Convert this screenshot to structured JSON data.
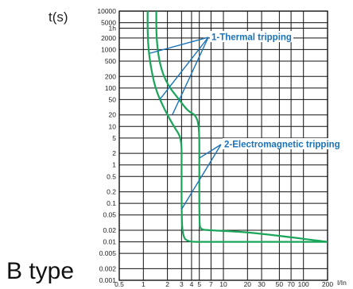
{
  "chart_data": {
    "type": "line",
    "title": "B type",
    "ylabel": "t(s)",
    "xlabel": "I/In",
    "x_scale": "log",
    "y_scale": "log",
    "xlim": [
      0.5,
      200
    ],
    "ylim": [
      0.001,
      10000
    ],
    "grid": true,
    "y_tick_labels": [
      "10000",
      "5000",
      "1h",
      "2000",
      "1000",
      "500",
      "200",
      "100",
      "50",
      "20",
      "10",
      "5",
      "2",
      "1",
      "0.5",
      "0.2",
      "0.1",
      "0.05",
      "0.02",
      "0.01",
      "0.005",
      "0.002",
      "0.001"
    ],
    "y_tick_values": [
      10000,
      5000,
      3600,
      2000,
      1000,
      500,
      200,
      100,
      50,
      20,
      10,
      5,
      2,
      1,
      0.5,
      0.2,
      0.1,
      0.05,
      0.02,
      0.01,
      0.005,
      0.002,
      0.001
    ],
    "x_tick_labels": [
      "0.5",
      "1",
      "2",
      "3",
      "4",
      "5",
      "7",
      "10",
      "20",
      "30",
      "50",
      "70",
      "100",
      "200"
    ],
    "x_tick_values": [
      0.5,
      1,
      2,
      3,
      4,
      5,
      7,
      10,
      20,
      30,
      50,
      70,
      100,
      200
    ],
    "series": [
      {
        "color": "#1aa55a",
        "x": [
          1.13,
          1.13,
          1.2,
          1.4,
          1.8,
          2.4,
          3.0,
          3.0,
          3.0,
          3.1,
          3.5,
          6,
          20,
          100,
          200
        ],
        "y": [
          10000,
          2000,
          500,
          100,
          30,
          10,
          5,
          1,
          0.05,
          0.015,
          0.01,
          0.01,
          0.01,
          0.01,
          0.01
        ]
      },
      {
        "color": "#1aa55a",
        "x": [
          1.45,
          1.45,
          1.6,
          2.0,
          2.8,
          3.6,
          4.5,
          5.0,
          5.0,
          5.0,
          5.2,
          6.5,
          20,
          100,
          200
        ],
        "y": [
          10000,
          2000,
          400,
          120,
          50,
          25,
          20,
          10,
          1,
          0.03,
          0.021,
          0.02,
          0.018,
          0.012,
          0.01
        ]
      }
    ],
    "annotations": [
      {
        "text": "1-Thermal tripping",
        "color": "#1a72b8",
        "pointer_targets": [
          [
            1.2,
            800
          ],
          [
            1.6,
            50
          ],
          [
            2.3,
            20
          ]
        ]
      },
      {
        "text": "2-Electromagnetic tripping",
        "color": "#1a72b8",
        "pointer_targets": [
          [
            5.0,
            1.5
          ],
          [
            3.0,
            0.07
          ]
        ]
      }
    ]
  }
}
